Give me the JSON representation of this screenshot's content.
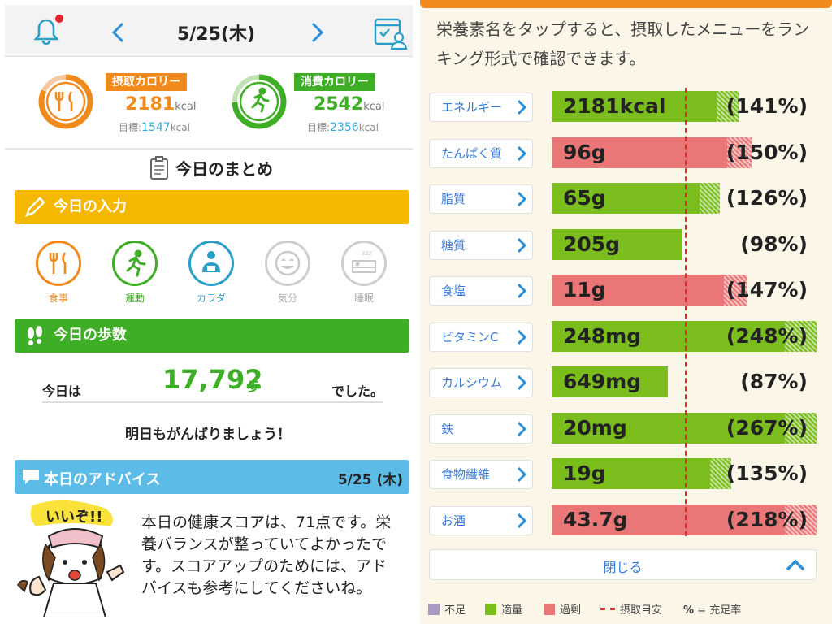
{
  "left": {
    "header": {
      "date": "5/25(木)"
    },
    "calories": {
      "intake": {
        "label": "摂取カロリー",
        "value": "2181",
        "unit": "kcal",
        "goal_label": "目標:",
        "goal_value": "1547",
        "goal_unit": "kcal",
        "color": "#f08a1c"
      },
      "burned": {
        "label": "消費カロリー",
        "value": "2542",
        "unit": "kcal",
        "goal_label": "目標:",
        "goal_value": "2356",
        "goal_unit": "kcal",
        "color": "#3fae27"
      }
    },
    "summary_title": "今日のまとめ",
    "input_section": {
      "title": "今日の入力",
      "color": "#f5b800",
      "items": [
        {
          "label": "食事",
          "color": "#f08a1c"
        },
        {
          "label": "運動",
          "color": "#3fae27"
        },
        {
          "label": "カラダ",
          "color": "#2a9ec8"
        },
        {
          "label": "気分",
          "color": "#bdbdbd"
        },
        {
          "label": "睡眠",
          "color": "#bdbdbd"
        }
      ]
    },
    "steps_section": {
      "title": "今日の歩数",
      "color": "#3fae27",
      "pre": "今日は",
      "count": "17,792",
      "unit": "歩",
      "post": "でした。",
      "cheer": "明日もがんばりましょう！"
    },
    "advice": {
      "title": "本日のアドバイス",
      "date": "5/25 (木)",
      "text": "本日の健康スコアは、71点です。栄養バランスが整っていてよかったです。スコアアップのためには、アドバイスも参考にしてくださいね。",
      "mascot_caption": "いいぞ!!"
    }
  },
  "right": {
    "intro": "栄養素名をタップすると、摂取したメニューをランキング形式で確認できます。",
    "colors": {
      "shortage": "#a89ac0",
      "adequate": "#7cbd1e",
      "excess": "#e97777",
      "target": "#e02a2a"
    },
    "nutrients": [
      {
        "name": "エネルギー",
        "value": "2181kcal",
        "percent_label": "(141%)",
        "percent": 141,
        "status": "adequate"
      },
      {
        "name": "たんぱく質",
        "value": "96g",
        "percent_label": "(150%)",
        "percent": 150,
        "status": "excess"
      },
      {
        "name": "脂質",
        "value": "65g",
        "percent_label": "(126%)",
        "percent": 126,
        "status": "adequate"
      },
      {
        "name": "糖質",
        "value": "205g",
        "percent_label": "(98%)",
        "percent": 98,
        "status": "adequate"
      },
      {
        "name": "食塩",
        "value": "11g",
        "percent_label": "(147%)",
        "percent": 147,
        "status": "excess"
      },
      {
        "name": "ビタミンC",
        "value": "248mg",
        "percent_label": "(248%)",
        "percent": 248,
        "status": "adequate"
      },
      {
        "name": "カルシウム",
        "value": "649mg",
        "percent_label": "(87%)",
        "percent": 87,
        "status": "adequate"
      },
      {
        "name": "鉄",
        "value": "20mg",
        "percent_label": "(267%)",
        "percent": 267,
        "status": "adequate"
      },
      {
        "name": "食物繊維",
        "value": "19g",
        "percent_label": "(135%)",
        "percent": 135,
        "status": "adequate"
      },
      {
        "name": "お酒",
        "value": "43.7g",
        "percent_label": "(218%)",
        "percent": 218,
        "status": "excess"
      }
    ],
    "close_label": "閉じる",
    "legend": {
      "shortage": "不足",
      "adequate": "適量",
      "excess": "過剰",
      "target": "摂取目安",
      "percent_symbol": "%",
      "percent_desc": "= 充足率"
    }
  }
}
